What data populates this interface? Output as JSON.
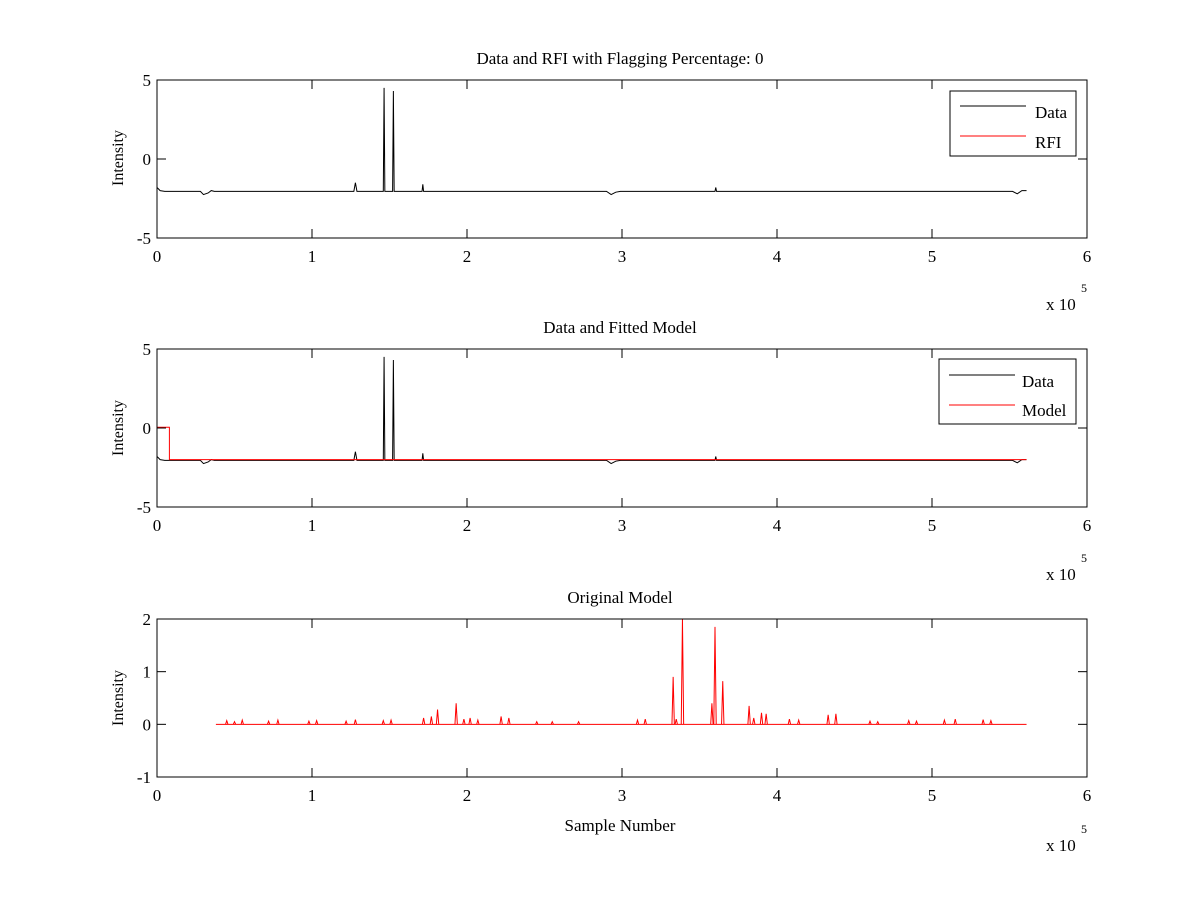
{
  "chart_data": [
    {
      "type": "line",
      "title": "Data and RFI with Flagging Percentage: 0",
      "xlabel": "",
      "ylabel": "Intensity",
      "xlim": [
        0,
        6
      ],
      "ylim": [
        -5,
        5
      ],
      "x_exponent_label": "x 10",
      "x_exponent": "5",
      "xticks": [
        "0",
        "1",
        "2",
        "3",
        "4",
        "5",
        "6"
      ],
      "yticks": [
        "-5",
        "0",
        "5"
      ],
      "legend": {
        "position": "top-right",
        "entries": [
          "Data",
          "RFI"
        ]
      },
      "series": [
        {
          "name": "Data",
          "color": "#000000",
          "x": [
            0,
            0.01,
            0.02,
            0.05,
            0.28,
            0.3,
            0.33,
            0.35,
            0.37,
            1.27,
            1.28,
            1.29,
            1.46,
            1.465,
            1.47,
            1.52,
            1.525,
            1.53,
            1.71,
            1.715,
            1.72,
            2.9,
            2.93,
            2.96,
            2.99,
            3.6,
            3.605,
            3.61,
            5.52,
            5.55,
            5.58,
            5.61
          ],
          "y": [
            -1.8,
            -1.9,
            -2.0,
            -2.05,
            -2.05,
            -2.25,
            -2.15,
            -2.0,
            -2.05,
            -2.05,
            -1.5,
            -2.05,
            -2.05,
            4.5,
            -2.05,
            -2.05,
            4.3,
            -2.05,
            -2.05,
            -1.6,
            -2.05,
            -2.05,
            -2.25,
            -2.1,
            -2.05,
            -2.05,
            -1.8,
            -2.05,
            -2.05,
            -2.2,
            -2.0,
            -2.0
          ]
        },
        {
          "name": "RFI",
          "color": "#ff0000",
          "x": [],
          "y": []
        }
      ]
    },
    {
      "type": "line",
      "title": "Data and Fitted Model",
      "xlabel": "",
      "ylabel": "Intensity",
      "xlim": [
        0,
        6
      ],
      "ylim": [
        -5,
        5
      ],
      "x_exponent_label": "x 10",
      "x_exponent": "5",
      "xticks": [
        "0",
        "1",
        "2",
        "3",
        "4",
        "5",
        "6"
      ],
      "yticks": [
        "-5",
        "0",
        "5"
      ],
      "legend": {
        "position": "top-right",
        "entries": [
          "Data",
          "Model"
        ]
      },
      "series": [
        {
          "name": "Data",
          "color": "#000000",
          "x": [
            0,
            0.01,
            0.02,
            0.05,
            0.28,
            0.3,
            0.33,
            0.35,
            0.37,
            1.27,
            1.28,
            1.29,
            1.46,
            1.465,
            1.47,
            1.52,
            1.525,
            1.53,
            1.71,
            1.715,
            1.72,
            2.9,
            2.93,
            2.96,
            2.99,
            3.6,
            3.605,
            3.61,
            5.52,
            5.55,
            5.58,
            5.61
          ],
          "y": [
            -1.8,
            -1.9,
            -2.0,
            -2.05,
            -2.05,
            -2.25,
            -2.15,
            -2.0,
            -2.05,
            -2.05,
            -1.5,
            -2.05,
            -2.05,
            4.5,
            -2.05,
            -2.05,
            4.3,
            -2.05,
            -2.05,
            -1.6,
            -2.05,
            -2.05,
            -2.25,
            -2.1,
            -2.05,
            -2.05,
            -1.8,
            -2.05,
            -2.05,
            -2.2,
            -2.0,
            -2.0
          ]
        },
        {
          "name": "Model",
          "color": "#ff0000",
          "x": [
            0,
            0.08,
            0.08,
            5.61
          ],
          "y": [
            0.05,
            0.05,
            -2.0,
            -2.0
          ]
        }
      ]
    },
    {
      "type": "line",
      "title": "Original Model",
      "xlabel": "Sample Number",
      "ylabel": "Intensity",
      "xlim": [
        0,
        6
      ],
      "ylim": [
        -1,
        2
      ],
      "x_exponent_label": "x 10",
      "x_exponent": "5",
      "xticks": [
        "0",
        "1",
        "2",
        "3",
        "4",
        "5",
        "6"
      ],
      "yticks": [
        "-1",
        "0",
        "1",
        "2"
      ],
      "series": [
        {
          "name": "",
          "color": "#ff0000",
          "baseline": 0,
          "spikes": [
            [
              0.45,
              0.07
            ],
            [
              0.5,
              0.05
            ],
            [
              0.55,
              0.08
            ],
            [
              0.72,
              0.06
            ],
            [
              0.78,
              0.08
            ],
            [
              0.98,
              0.06
            ],
            [
              1.03,
              0.07
            ],
            [
              1.22,
              0.06
            ],
            [
              1.28,
              0.09
            ],
            [
              1.46,
              0.07
            ],
            [
              1.51,
              0.08
            ],
            [
              1.72,
              0.12
            ],
            [
              1.77,
              0.15
            ],
            [
              1.81,
              0.28
            ],
            [
              1.93,
              0.4
            ],
            [
              1.98,
              0.1
            ],
            [
              2.02,
              0.12
            ],
            [
              2.07,
              0.08
            ],
            [
              2.22,
              0.15
            ],
            [
              2.27,
              0.12
            ],
            [
              2.45,
              0.05
            ],
            [
              2.55,
              0.05
            ],
            [
              2.72,
              0.05
            ],
            [
              3.1,
              0.08
            ],
            [
              3.15,
              0.1
            ],
            [
              3.33,
              0.9
            ],
            [
              3.35,
              0.1
            ],
            [
              3.39,
              2.0
            ],
            [
              3.58,
              0.4
            ],
            [
              3.6,
              1.85
            ],
            [
              3.65,
              0.82
            ],
            [
              3.82,
              0.35
            ],
            [
              3.85,
              0.12
            ],
            [
              3.9,
              0.22
            ],
            [
              3.93,
              0.2
            ],
            [
              4.08,
              0.1
            ],
            [
              4.14,
              0.08
            ],
            [
              4.33,
              0.18
            ],
            [
              4.38,
              0.2
            ],
            [
              4.6,
              0.06
            ],
            [
              4.65,
              0.05
            ],
            [
              4.85,
              0.07
            ],
            [
              4.9,
              0.06
            ],
            [
              5.08,
              0.08
            ],
            [
              5.15,
              0.1
            ],
            [
              5.33,
              0.09
            ],
            [
              5.38,
              0.07
            ]
          ],
          "x_end": 5.61
        }
      ]
    }
  ]
}
